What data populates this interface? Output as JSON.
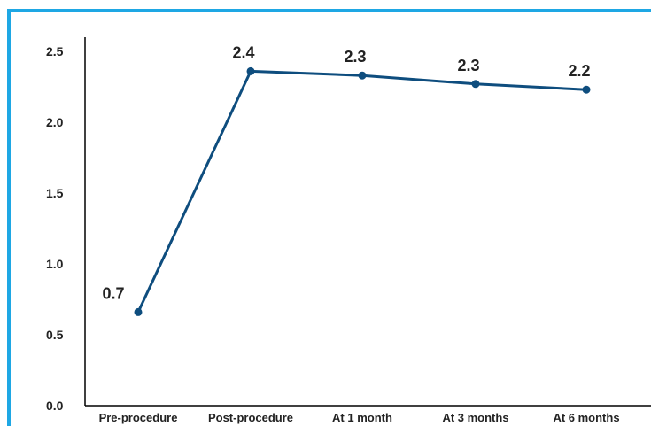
{
  "colors": {
    "frame": "#1ea7e4",
    "series": "#0e4d7e",
    "axis": "#000000",
    "text": "#222222"
  },
  "chart_data": {
    "type": "line",
    "categories": [
      "Pre-procedure",
      "Post-procedure",
      "At 1 month",
      "At 3 months",
      "At 6 months"
    ],
    "series": [
      {
        "values": [
          0.66,
          2.36,
          2.33,
          2.27,
          2.23
        ],
        "labels": [
          "0.7",
          "2.4",
          "2.3",
          "2.3",
          "2.2"
        ]
      }
    ],
    "ylim": [
      0,
      2.5
    ],
    "yticks": [
      "0.0",
      "0.5",
      "1.0",
      "1.5",
      "2.0",
      "2.5"
    ],
    "grid": false,
    "legend": "none"
  }
}
